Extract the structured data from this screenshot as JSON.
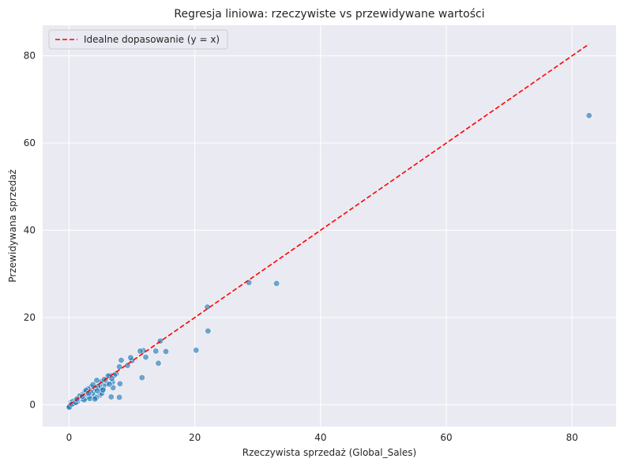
{
  "chart_data": {
    "type": "scatter",
    "title": "Regresja liniowa: rzeczywiste vs przewidywane wartości",
    "xlabel": "Rzeczywista sprzedaż (Global_Sales)",
    "ylabel": "Przewidywana sprzedaż",
    "xlim": [
      -4.2,
      87
    ],
    "ylim": [
      -5,
      87
    ],
    "xticks": [
      0,
      20,
      40,
      60,
      80
    ],
    "yticks": [
      0,
      20,
      40,
      60,
      80
    ],
    "grid": true,
    "legend": {
      "position": "top-left",
      "entries": [
        "Idealne dopasowanie (y = x)"
      ]
    },
    "colors": {
      "points": "#1f77b4",
      "ideal_line": "#ff0000",
      "background": "#eaeaf2"
    },
    "ideal_line": {
      "from": [
        0,
        0
      ],
      "to": [
        82.7,
        82.7
      ],
      "style": "dashed"
    },
    "series": [
      {
        "kind": "points",
        "x": [
          82.7,
          33.0,
          28.6,
          22.0,
          22.1,
          20.2,
          15.4,
          14.5,
          14.2,
          13.8,
          12.2,
          11.8,
          11.3,
          11.6,
          10.0,
          9.8,
          9.3,
          8.3,
          8.0,
          8.1,
          7.5,
          7.2,
          6.9,
          6.7,
          6.5,
          6.2,
          6.0,
          5.8,
          5.5,
          5.3,
          5.1,
          5.0,
          4.9,
          4.8,
          4.6,
          4.4,
          4.2,
          4.0,
          3.9,
          3.7,
          3.5,
          3.4,
          3.2,
          3.0,
          2.9,
          2.8,
          2.6,
          2.5,
          2.3,
          2.2,
          2.0,
          1.9,
          1.8,
          1.6,
          1.5,
          1.4,
          1.2,
          1.1,
          1.0,
          0.9,
          0.8,
          0.7,
          0.6,
          0.5,
          0.4,
          0.35,
          0.3,
          0.25,
          0.2,
          0.15,
          0.1,
          0.05,
          0.02,
          4.3,
          3.8,
          5.2,
          6.8,
          7.0,
          8.0,
          4.5,
          3.3,
          2.7,
          5.6,
          6.4,
          2.4,
          1.7,
          1.3,
          3.1,
          4.1,
          5.4,
          2.1,
          0.75,
          0.55,
          0.45,
          1.05,
          1.25
        ],
        "y": [
          66.3,
          27.8,
          28.0,
          22.4,
          16.9,
          12.5,
          12.2,
          14.6,
          9.5,
          12.3,
          10.9,
          12.4,
          12.3,
          6.2,
          10.1,
          10.8,
          9.0,
          10.2,
          8.7,
          4.8,
          7.1,
          6.8,
          5.2,
          1.8,
          6.7,
          6.6,
          4.9,
          5.5,
          4.3,
          3.4,
          5.3,
          3.6,
          2.2,
          4.4,
          4.2,
          5.6,
          3.8,
          2.0,
          3.1,
          2.5,
          4.1,
          3.0,
          1.9,
          3.6,
          2.4,
          2.8,
          1.5,
          2.9,
          2.1,
          1.4,
          2.3,
          1.6,
          1.2,
          1.8,
          1.1,
          1.5,
          0.9,
          1.2,
          0.8,
          1.0,
          0.6,
          0.9,
          0.4,
          0.6,
          0.5,
          0.2,
          0.3,
          0.1,
          0.4,
          0.0,
          -0.2,
          -0.4,
          -0.6,
          1.6,
          4.6,
          2.6,
          6.0,
          3.9,
          1.7,
          3.2,
          1.4,
          3.3,
          5.8,
          4.7,
          1.1,
          2.0,
          0.7,
          2.6,
          1.3,
          3.4,
          1.9,
          0.3,
          0.7,
          0.1,
          0.5,
          1.3
        ]
      }
    ]
  }
}
